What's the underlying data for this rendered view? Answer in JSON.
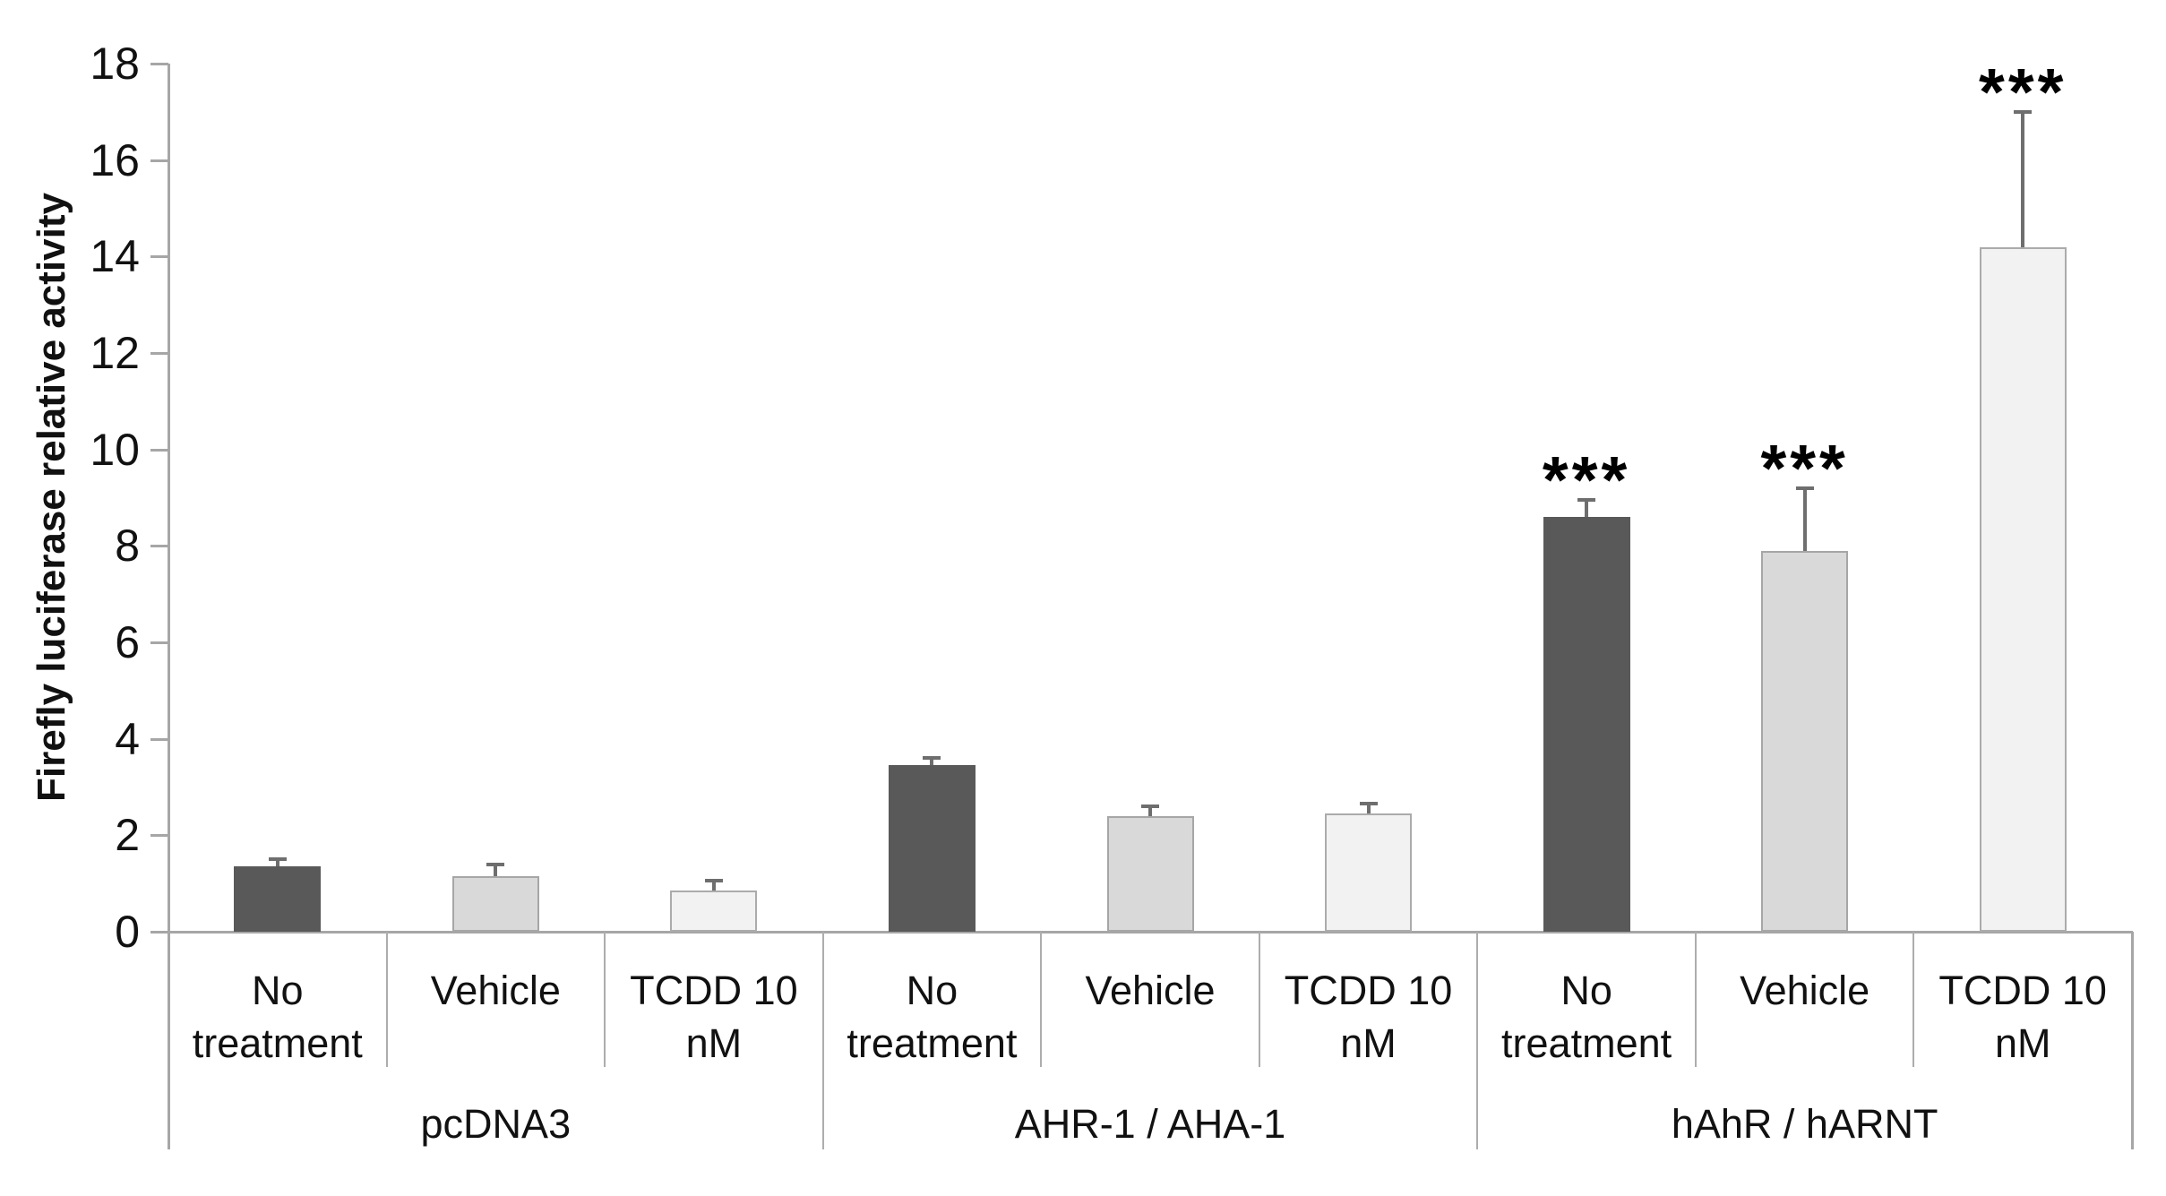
{
  "chart_data": {
    "type": "bar",
    "title": "",
    "ylabel": "Firefly luciferase relative activity",
    "xlabel": "",
    "ylim": [
      0,
      18
    ],
    "yticks": [
      0,
      2,
      4,
      6,
      8,
      10,
      12,
      14,
      16,
      18
    ],
    "grid": false,
    "legend_position": "none",
    "error_bars": "upper",
    "significance_marker": "***",
    "bar_shades": [
      {
        "name": "no-treatment-shade",
        "fill": "#595959",
        "border": "#595959"
      },
      {
        "name": "vehicle-shade",
        "fill": "#d9d9d9",
        "border": "#a6a6a6"
      },
      {
        "name": "tcdd-shade",
        "fill": "#f2f2f2",
        "border": "#ababab"
      }
    ],
    "groups": [
      {
        "label": "pcDNA3",
        "bars": [
          {
            "category": "No treatment",
            "value": 1.35,
            "error": 0.15,
            "significance": ""
          },
          {
            "category": "Vehicle",
            "value": 1.15,
            "error": 0.25,
            "significance": ""
          },
          {
            "category": "TCDD 10 nM",
            "value": 0.85,
            "error": 0.2,
            "significance": ""
          }
        ]
      },
      {
        "label": "AHR-1 / AHA-1",
        "bars": [
          {
            "category": "No treatment",
            "value": 3.45,
            "error": 0.15,
            "significance": ""
          },
          {
            "category": "Vehicle",
            "value": 2.4,
            "error": 0.2,
            "significance": ""
          },
          {
            "category": "TCDD 10 nM",
            "value": 2.45,
            "error": 0.2,
            "significance": ""
          }
        ]
      },
      {
        "label": "hAhR / hARNT",
        "bars": [
          {
            "category": "No treatment",
            "value": 8.6,
            "error": 0.35,
            "significance": "***"
          },
          {
            "category": "Vehicle",
            "value": 7.9,
            "error": 1.3,
            "significance": "***"
          },
          {
            "category": "TCDD 10 nM",
            "value": 14.2,
            "error": 2.8,
            "significance": "***"
          }
        ]
      }
    ]
  },
  "colors": {
    "axis_line": "#a6a6a6",
    "separator": "#adadad",
    "error_bar": "#6e6e6e",
    "text": "#111111",
    "significance": "#000000",
    "background": "#ffffff"
  }
}
